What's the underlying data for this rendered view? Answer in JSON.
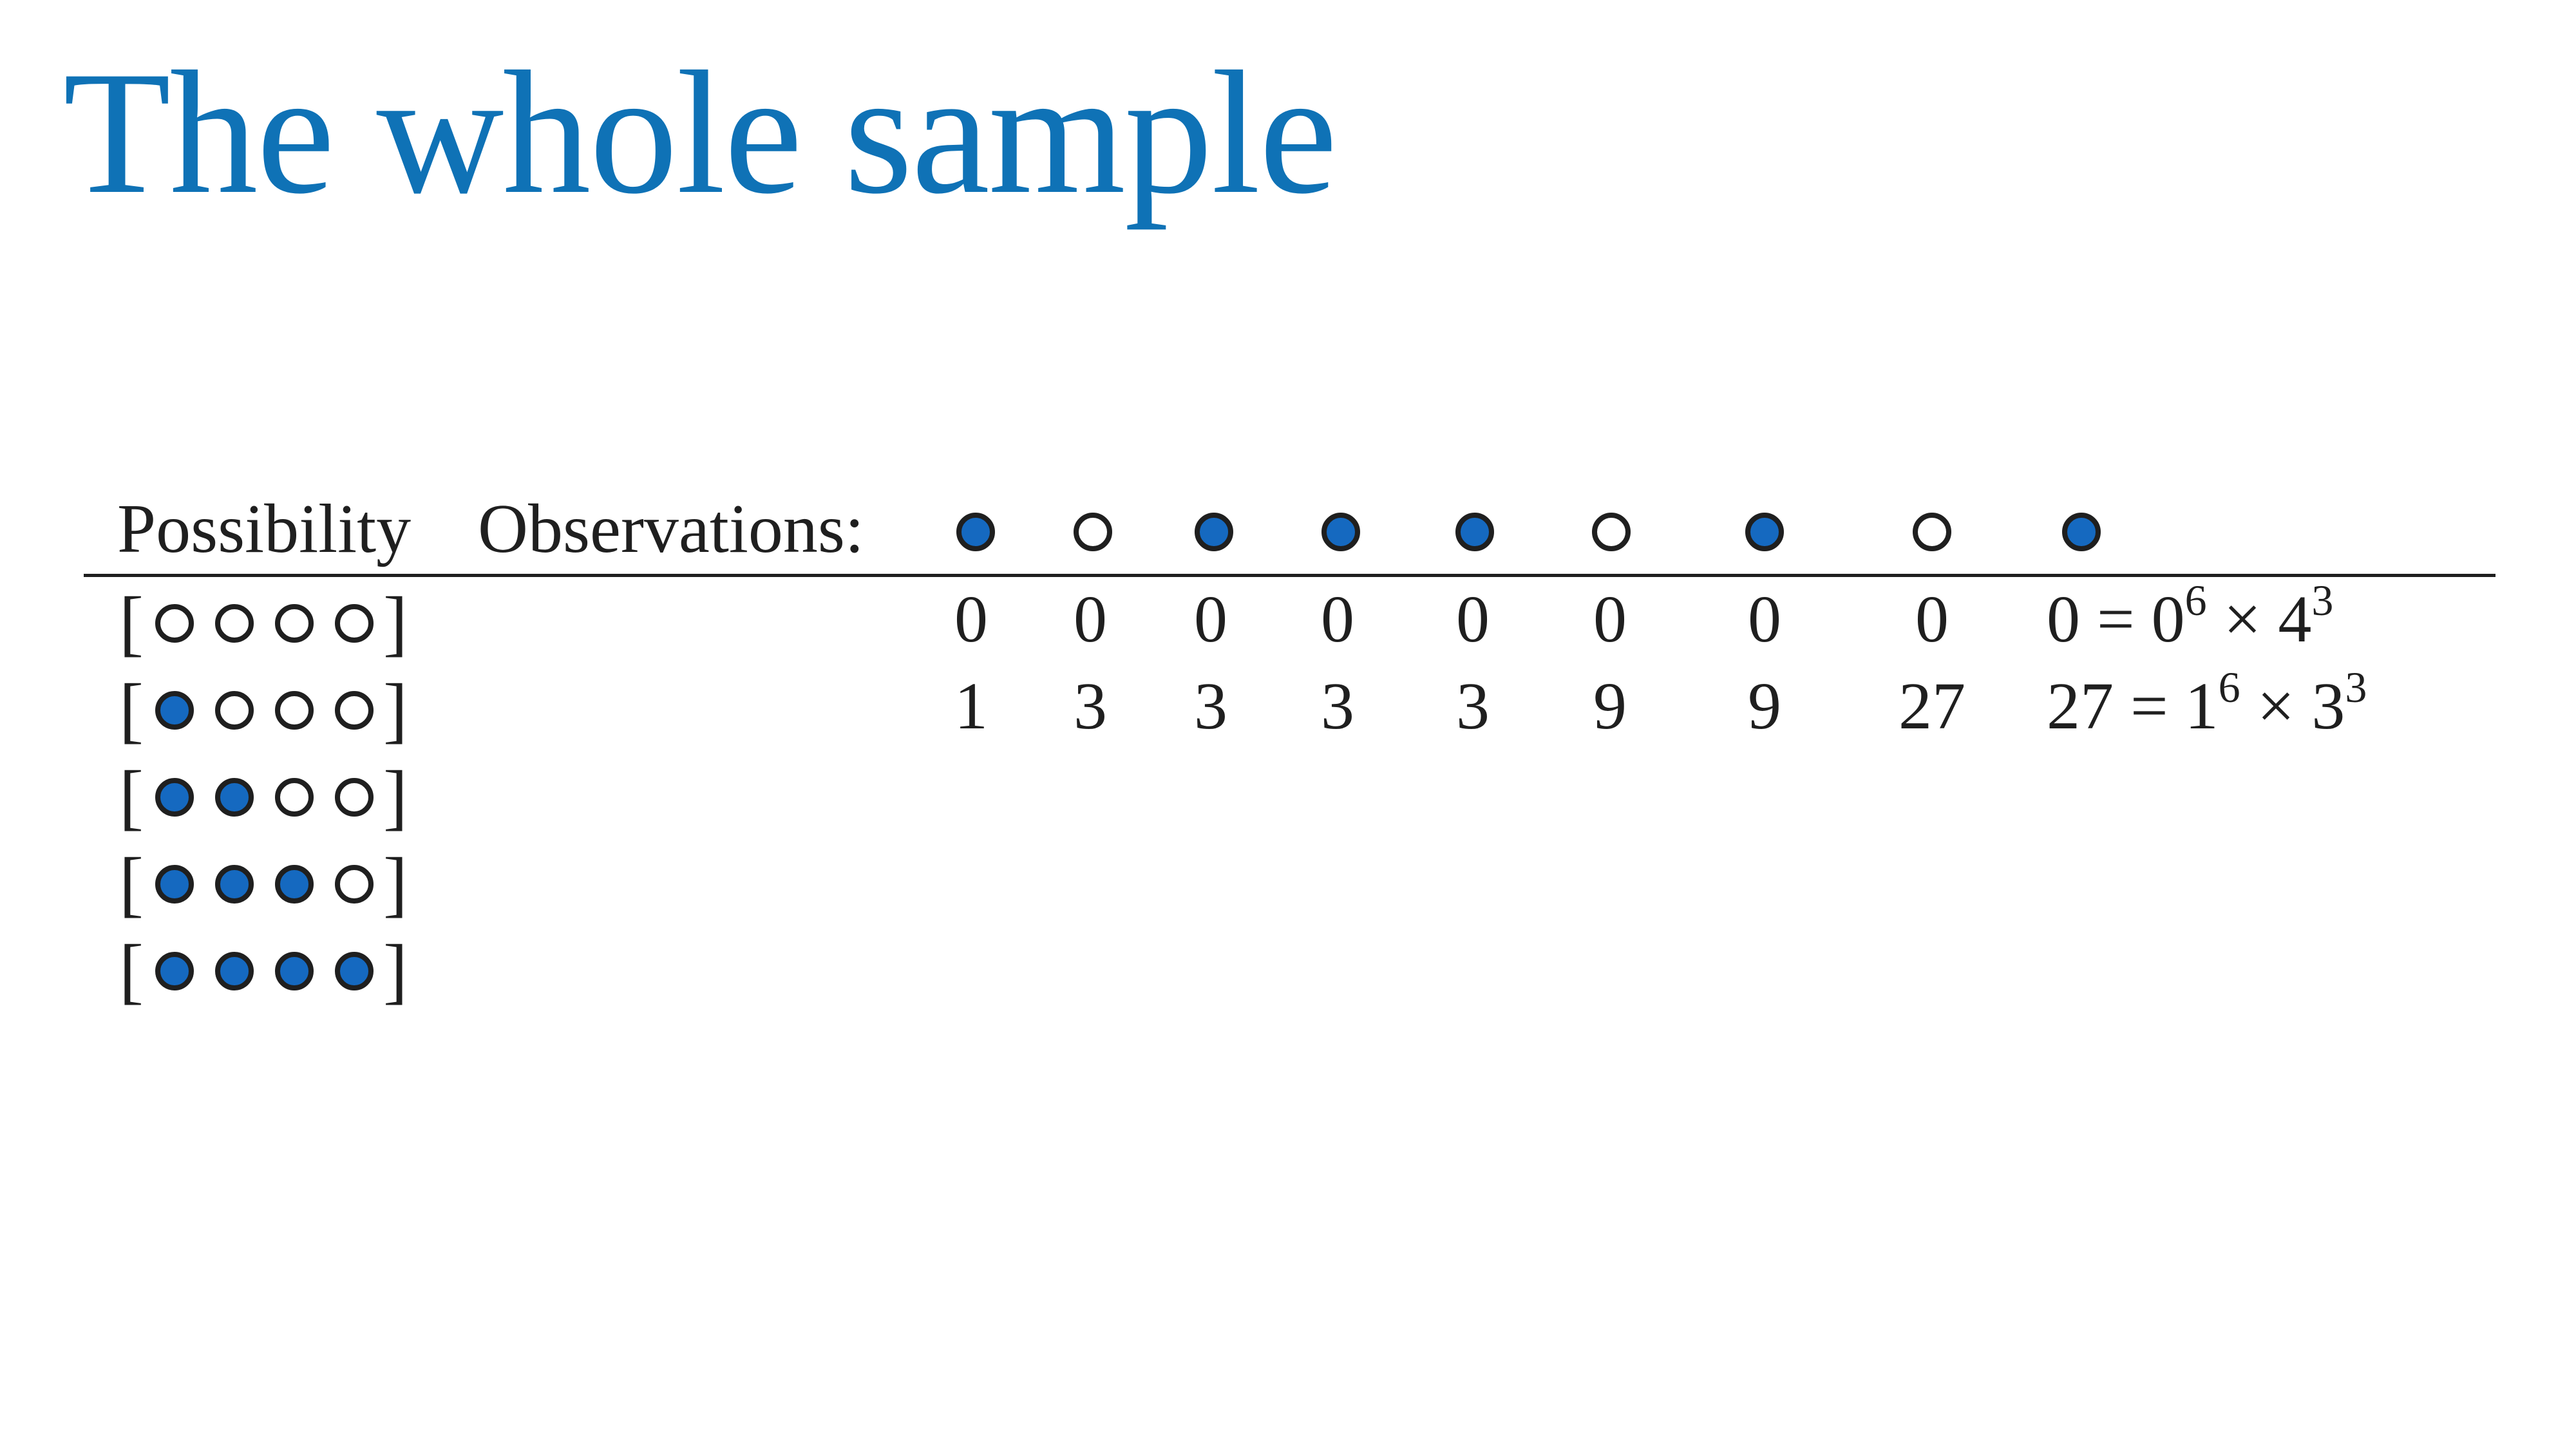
{
  "title": "The whole sample",
  "header": {
    "possibility": "Possibility",
    "observations": "Observations:"
  },
  "colors": {
    "title": "#0f72b6",
    "filled_marble": "#1569c0",
    "empty_marble": "#ffffff",
    "outline": "#1f1f1f"
  },
  "observations": [
    "blue",
    "white",
    "blue",
    "blue",
    "blue",
    "white",
    "blue",
    "white",
    "blue"
  ],
  "possibilities": [
    {
      "marbles": [
        "white",
        "white",
        "white",
        "white"
      ]
    },
    {
      "marbles": [
        "blue",
        "white",
        "white",
        "white"
      ]
    },
    {
      "marbles": [
        "blue",
        "blue",
        "white",
        "white"
      ]
    },
    {
      "marbles": [
        "blue",
        "blue",
        "blue",
        "white"
      ]
    },
    {
      "marbles": [
        "blue",
        "blue",
        "blue",
        "blue"
      ]
    }
  ],
  "rows": [
    {
      "cells": [
        "0",
        "0",
        "0",
        "0",
        "0",
        "0",
        "0",
        "0"
      ],
      "total": "0",
      "equals": "=",
      "base1": "0",
      "exp1": "6",
      "times": "×",
      "base2": "4",
      "exp2": "3"
    },
    {
      "cells": [
        "1",
        "3",
        "3",
        "3",
        "3",
        "9",
        "9",
        "27"
      ],
      "total": "27",
      "equals": "=",
      "base1": "1",
      "exp1": "6",
      "times": "×",
      "base2": "3",
      "exp2": "3"
    }
  ]
}
